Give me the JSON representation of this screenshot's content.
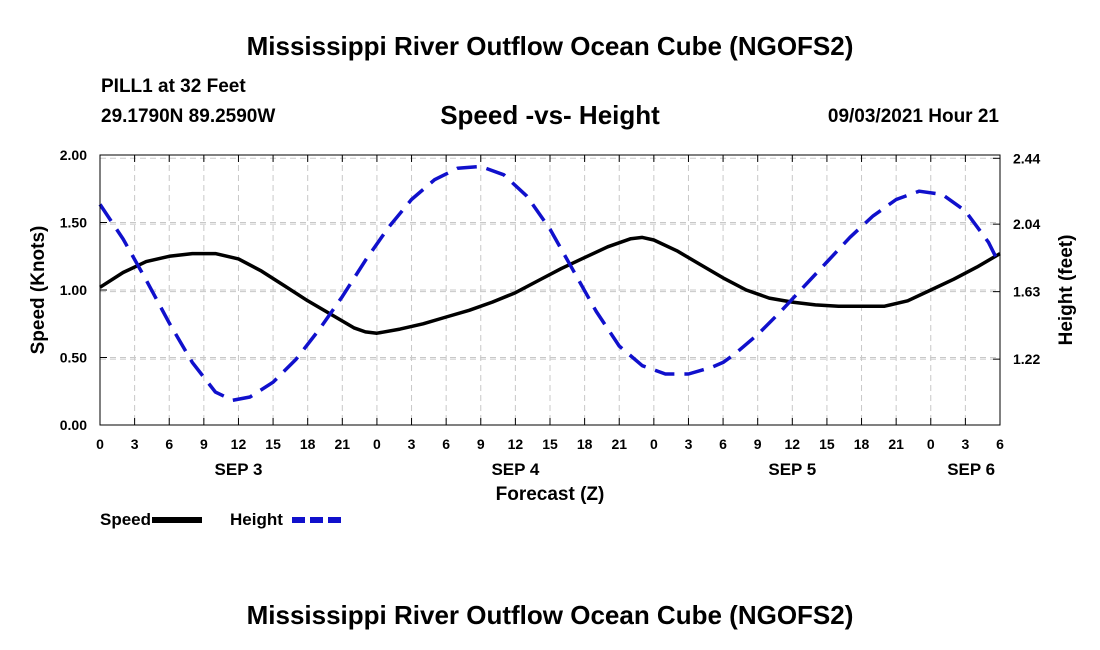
{
  "header": {
    "title": "Mississippi River Outflow Ocean Cube (NGOFS2)",
    "station": "PILL1 at 32 Feet",
    "coordinates": "29.1790N  89.2590W",
    "subtitle": "Speed -vs- Height",
    "datetime": "09/03/2021 Hour 21"
  },
  "footer": {
    "title": "Mississippi River Outflow Ocean Cube (NGOFS2)"
  },
  "chart_data": {
    "type": "line",
    "title": "Speed -vs- Height",
    "xlabel": "Forecast (Z)",
    "ylabel": "Speed (Knots)",
    "y2label": "Height (feet)",
    "x_unit": "hours since Sep 3 00Z",
    "xlim": [
      0,
      78
    ],
    "ylim": [
      0,
      2.0
    ],
    "y2lim": [
      0.82,
      2.46
    ],
    "x_ticks": [
      0,
      3,
      6,
      9,
      12,
      15,
      18,
      21,
      24,
      27,
      30,
      33,
      36,
      39,
      42,
      45,
      48,
      51,
      54,
      57,
      60,
      63,
      66,
      69,
      72,
      75,
      78
    ],
    "x_tick_labels": [
      "0",
      "3",
      "6",
      "9",
      "12",
      "15",
      "18",
      "21",
      "0",
      "3",
      "6",
      "9",
      "12",
      "15",
      "18",
      "21",
      "0",
      "3",
      "6",
      "9",
      "12",
      "15",
      "18",
      "21",
      "0",
      "3",
      "6"
    ],
    "date_labels": [
      {
        "label": "SEP 3",
        "x": 12
      },
      {
        "label": "SEP 4",
        "x": 36
      },
      {
        "label": "SEP 5",
        "x": 60
      },
      {
        "label": "SEP 6",
        "x": 75.5
      }
    ],
    "y_ticks": [
      0,
      0.5,
      1.0,
      1.5,
      2.0
    ],
    "y_tick_labels": [
      "0.00",
      "0.50",
      "1.00",
      "1.50",
      "2.00"
    ],
    "y2_ticks": [
      1.22,
      1.63,
      2.04,
      2.44
    ],
    "y2_tick_labels": [
      "1.22",
      "1.63",
      "2.04",
      "2.44"
    ],
    "grid": true,
    "series": [
      {
        "name": "Speed",
        "axis": "left",
        "color": "#000000",
        "dash": "solid",
        "x": [
          0,
          2,
          4,
          6,
          8,
          10,
          12,
          14,
          16,
          18,
          20,
          22,
          23,
          24,
          26,
          28,
          30,
          32,
          34,
          36,
          38,
          40,
          42,
          44,
          46,
          47,
          48,
          50,
          52,
          54,
          56,
          58,
          60,
          62,
          64,
          66,
          68,
          70,
          72,
          74,
          76,
          78
        ],
        "values": [
          1.02,
          1.13,
          1.21,
          1.25,
          1.27,
          1.27,
          1.23,
          1.14,
          1.03,
          0.92,
          0.82,
          0.72,
          0.69,
          0.68,
          0.71,
          0.75,
          0.8,
          0.85,
          0.91,
          0.98,
          1.07,
          1.16,
          1.24,
          1.32,
          1.38,
          1.39,
          1.37,
          1.29,
          1.19,
          1.09,
          1.0,
          0.94,
          0.91,
          0.89,
          0.88,
          0.88,
          0.88,
          0.92,
          1.0,
          1.08,
          1.17,
          1.27
        ]
      },
      {
        "name": "Height",
        "axis": "right",
        "color": "#1010cc",
        "dash": "dashed",
        "x": [
          0,
          2,
          4,
          6,
          8,
          10,
          11.5,
          13,
          15,
          17,
          19,
          21,
          23,
          25,
          27,
          29,
          31,
          33,
          35,
          37,
          39,
          41,
          43,
          45,
          47,
          49,
          51,
          53,
          54,
          55,
          57,
          59,
          61,
          63,
          65,
          67,
          69,
          71,
          73,
          75,
          77,
          78
        ],
        "values": [
          2.16,
          1.95,
          1.7,
          1.44,
          1.2,
          1.02,
          0.97,
          0.99,
          1.08,
          1.22,
          1.4,
          1.6,
          1.82,
          2.02,
          2.19,
          2.31,
          2.38,
          2.39,
          2.34,
          2.21,
          2.01,
          1.76,
          1.51,
          1.3,
          1.18,
          1.13,
          1.13,
          1.17,
          1.2,
          1.25,
          1.37,
          1.51,
          1.66,
          1.81,
          1.96,
          2.09,
          2.19,
          2.24,
          2.22,
          2.12,
          1.93,
          1.79
        ]
      }
    ],
    "legend": [
      {
        "label": "Speed",
        "color": "#000000",
        "dash": "solid"
      },
      {
        "label": "Height",
        "color": "#1010cc",
        "dash": "dashed"
      }
    ],
    "legend_position": "bottom-left"
  }
}
